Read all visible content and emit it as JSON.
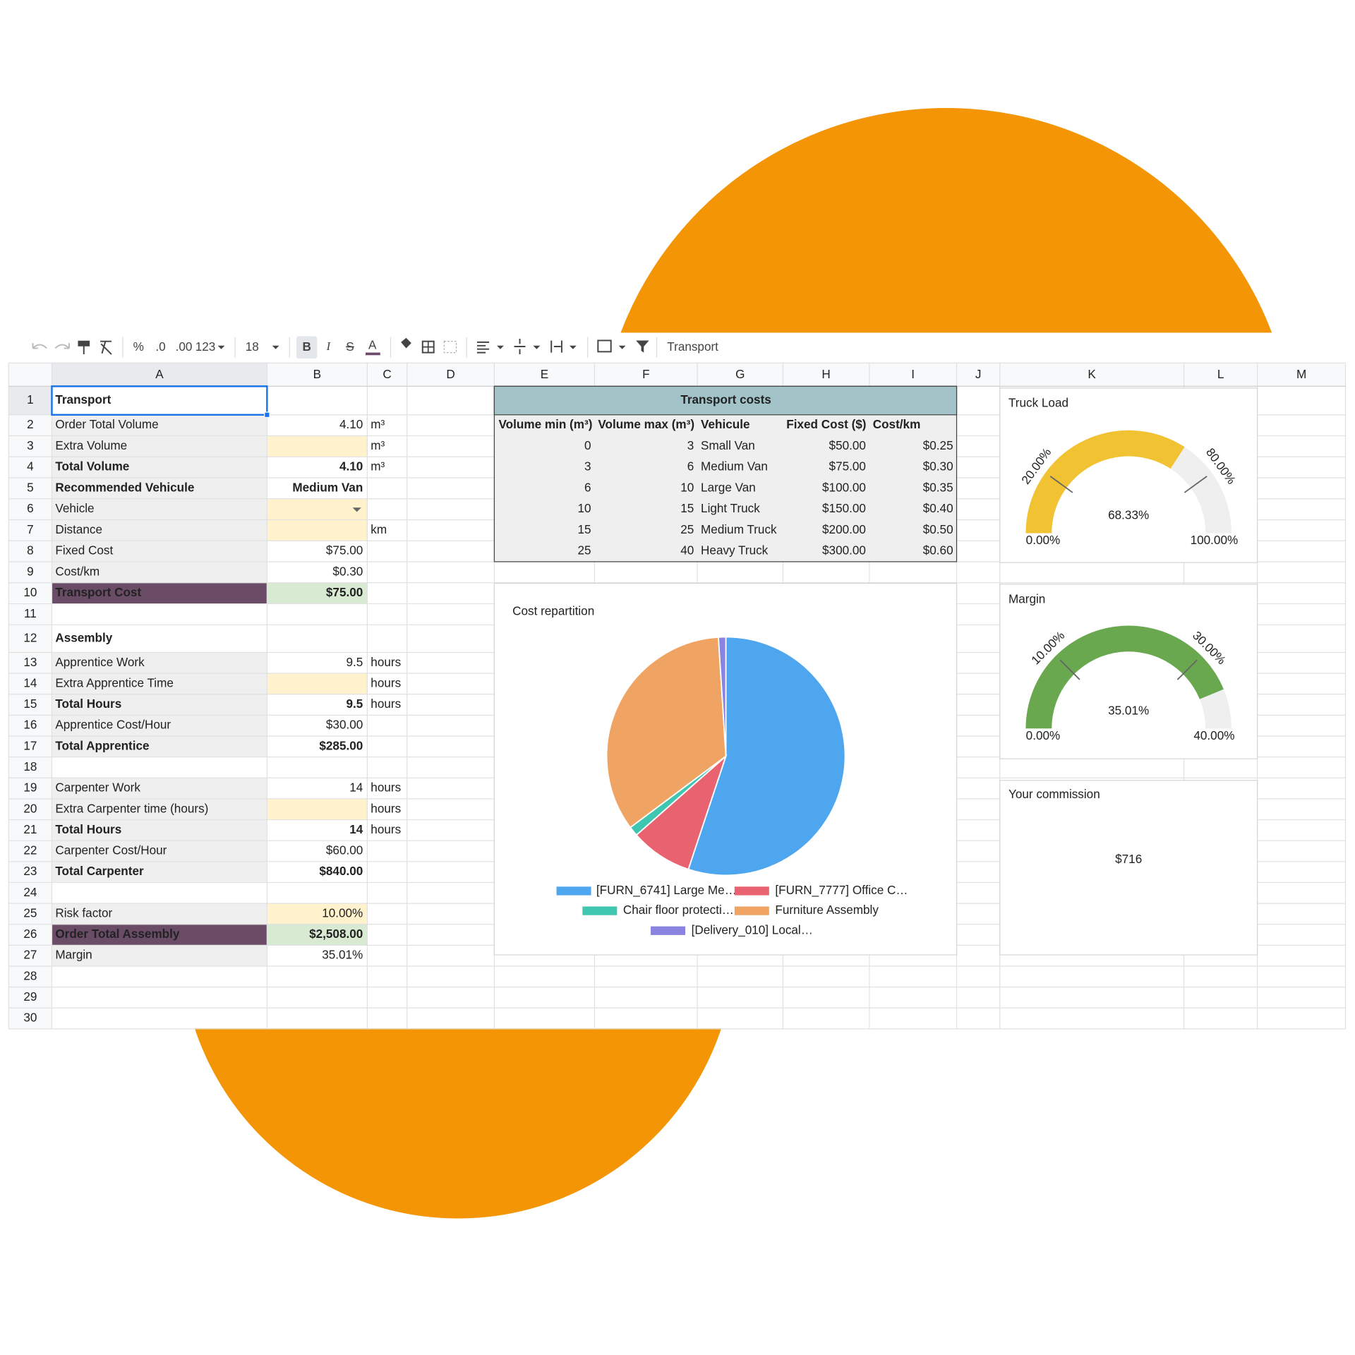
{
  "toolbar": {
    "number_formats": [
      "%",
      ".0",
      ".00",
      "123"
    ],
    "font_size": "18",
    "text_styles": [
      "B",
      "I",
      "S",
      "A"
    ],
    "formula": "Transport"
  },
  "sheet": {
    "columns": [
      "A",
      "B",
      "C",
      "D",
      "E",
      "F",
      "G",
      "H",
      "I",
      "J",
      "K",
      "L",
      "M"
    ],
    "rows": [
      {
        "n": 1,
        "a": "Transport"
      },
      {
        "n": 2,
        "a": "Order Total Volume",
        "b": "4.10",
        "c": "m³"
      },
      {
        "n": 3,
        "a": "Extra Volume",
        "c": "m³"
      },
      {
        "n": 4,
        "a": "Total Volume",
        "b": "4.10",
        "c": "m³"
      },
      {
        "n": 5,
        "a": "Recommended Vehicule",
        "b": "Medium Van"
      },
      {
        "n": 6,
        "a": "Vehicle"
      },
      {
        "n": 7,
        "a": "Distance",
        "c": "km"
      },
      {
        "n": 8,
        "a": "Fixed Cost",
        "b": "$75.00"
      },
      {
        "n": 9,
        "a": "Cost/km",
        "b": "$0.30"
      },
      {
        "n": 10,
        "a": "Transport Cost",
        "b": "$75.00"
      },
      {
        "n": 11
      },
      {
        "n": 12,
        "a": "Assembly"
      },
      {
        "n": 13,
        "a": "Apprentice Work",
        "b": "9.5",
        "c": "hours"
      },
      {
        "n": 14,
        "a": "Extra Apprentice Time",
        "c": "hours"
      },
      {
        "n": 15,
        "a": "Total Hours",
        "b": "9.5",
        "c": "hours"
      },
      {
        "n": 16,
        "a": "Apprentice Cost/Hour",
        "b": "$30.00"
      },
      {
        "n": 17,
        "a": "Total Apprentice",
        "b": "$285.00"
      },
      {
        "n": 18
      },
      {
        "n": 19,
        "a": "Carpenter Work",
        "b": "14",
        "c": "hours"
      },
      {
        "n": 20,
        "a": "Extra Carpenter time (hours)",
        "c": "hours"
      },
      {
        "n": 21,
        "a": "Total Hours",
        "b": "14",
        "c": "hours"
      },
      {
        "n": 22,
        "a": "Carpenter Cost/Hour",
        "b": "$60.00"
      },
      {
        "n": 23,
        "a": "Total Carpenter",
        "b": "$840.00"
      },
      {
        "n": 24
      },
      {
        "n": 25,
        "a": "Risk factor",
        "b": "10.00%"
      },
      {
        "n": 26,
        "a": "Order Total Assembly",
        "b": "$2,508.00"
      },
      {
        "n": 27,
        "a": "Margin",
        "b": "35.01%"
      },
      {
        "n": 28
      },
      {
        "n": 29
      },
      {
        "n": 30
      }
    ]
  },
  "transport_costs": {
    "title": "Transport costs",
    "headers": [
      "Volume min (m³)",
      "Volume max (m³)",
      "Vehicule",
      "Fixed Cost ($)",
      "Cost/km"
    ],
    "rows": [
      [
        "0",
        "3",
        "Small Van",
        "$50.00",
        "$0.25"
      ],
      [
        "3",
        "6",
        "Medium Van",
        "$75.00",
        "$0.30"
      ],
      [
        "6",
        "10",
        "Large Van",
        "$100.00",
        "$0.35"
      ],
      [
        "10",
        "15",
        "Light Truck",
        "$150.00",
        "$0.40"
      ],
      [
        "15",
        "25",
        "Medium Truck",
        "$200.00",
        "$0.50"
      ],
      [
        "25",
        "40",
        "Heavy Truck",
        "$300.00",
        "$0.60"
      ]
    ]
  },
  "chart_data": [
    {
      "type": "pie",
      "title": "Cost repartition",
      "categories": [
        "[FURN_6741] Large Me…",
        "[FURN_7777] Office C…",
        "Chair floor protecti…",
        "Furniture Assembly",
        "[Delivery_010] Local…"
      ],
      "values": [
        55.1,
        8.4,
        1.3,
        34.2,
        1.0
      ],
      "colors": [
        "#4ea6ef",
        "#e9626f",
        "#3ec6b0",
        "#f0a463",
        "#8a83e0"
      ]
    },
    {
      "type": "gauge",
      "title": "Truck Load",
      "values": [
        68.33
      ],
      "value_labels": [
        "68.33%"
      ],
      "color": "#f1c232",
      "ylim": [
        0,
        100
      ],
      "yticks": [
        {
          "value": 0,
          "label": "0.00%"
        },
        {
          "value": 20,
          "label": "20.00%"
        },
        {
          "value": 80,
          "label": "80.00%"
        },
        {
          "value": 100,
          "label": "100.00%"
        }
      ]
    },
    {
      "type": "gauge",
      "title": "Margin",
      "values": [
        35.01
      ],
      "value_labels": [
        "35.01%"
      ],
      "color": "#6aa84f",
      "ylim": [
        0,
        40
      ],
      "yticks": [
        {
          "value": 0,
          "label": "0.00%"
        },
        {
          "value": 10,
          "label": "10.00%"
        },
        {
          "value": 30,
          "label": "30.00%"
        },
        {
          "value": 40,
          "label": "40.00%"
        }
      ]
    }
  ],
  "scorecard": {
    "title": "Your commission",
    "value": "$716"
  }
}
